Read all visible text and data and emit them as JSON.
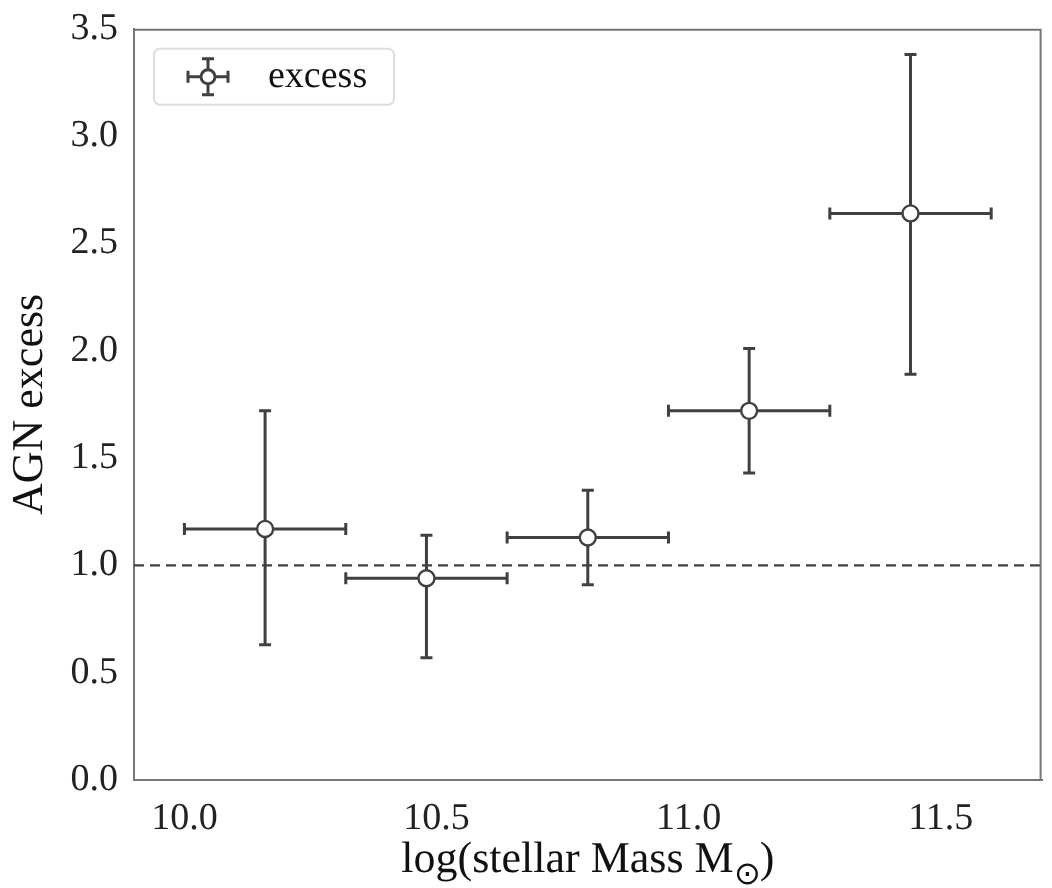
{
  "chart_data": {
    "type": "scatter",
    "xlabel": "log(stellar Mass M$_{⊙}$)",
    "ylabel": "AGN excess",
    "xlim": [
      9.9,
      11.7
    ],
    "xticks": [
      {
        "value": 10,
        "label": "10.0"
      },
      10.5,
      {
        "value": 11,
        "label": "11.0"
      },
      11.5
    ],
    "ylim": [
      0,
      3.5
    ],
    "yticks": [
      {
        "value": 0,
        "label": "0.0"
      },
      0.5,
      {
        "value": 1,
        "label": "1.0"
      },
      1.5,
      {
        "value": 2,
        "label": "2.0"
      },
      2.5,
      {
        "value": 3,
        "label": "3.0"
      },
      3.5
    ],
    "series": [
      {
        "name": "excess",
        "color": "#404040",
        "x": [
          10.16,
          10.48,
          10.8,
          11.12,
          11.44
        ],
        "values": [
          1.17,
          0.94,
          1.13,
          1.72,
          2.64
        ],
        "errors": [
          [
            0.63,
            1.72
          ],
          [
            0.57,
            1.14
          ],
          [
            0.91,
            1.35
          ],
          [
            1.43,
            2.01
          ],
          [
            1.89,
            3.38
          ]
        ],
        "xerrors": [
          0.16,
          0.16,
          0.16,
          0.16,
          0.16
        ]
      }
    ],
    "ref_lines": [
      {
        "axis": "y",
        "value": 1,
        "color": "#404040",
        "line_style": "dashed"
      }
    ],
    "marker": "circle",
    "grid": false,
    "legend": "top left"
  }
}
